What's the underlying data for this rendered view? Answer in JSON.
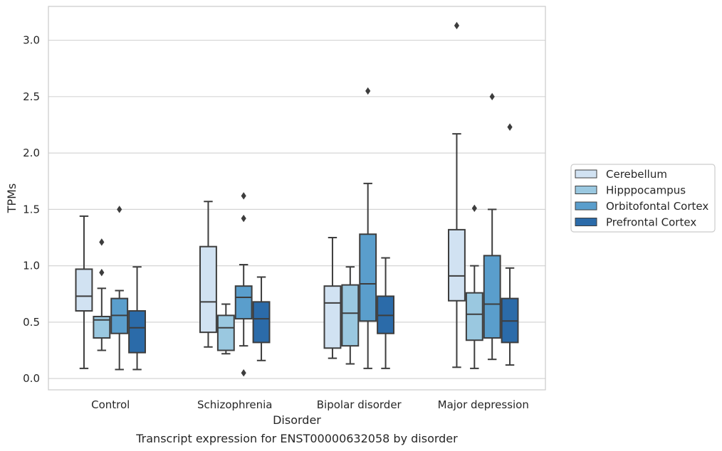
{
  "chart_data": {
    "type": "boxplot",
    "xlabel": "Disorder",
    "ylabel": "TPMs",
    "caption": "Transcript expression for ENST00000632058 by disorder",
    "ylim": [
      -0.1,
      3.3
    ],
    "yticks": [
      0.0,
      0.5,
      1.0,
      1.5,
      2.0,
      2.5,
      3.0
    ],
    "ytick_labels": [
      "0.0",
      "0.5",
      "1.0",
      "1.5",
      "2.0",
      "2.5",
      "3.0"
    ],
    "grid": "horizontal",
    "legend_position": "right",
    "categories": [
      "Control",
      "Schizophrenia",
      "Bipolar disorder",
      "Major depression"
    ],
    "series": [
      {
        "name": "Cerebellum",
        "color": "#d1e2f2",
        "boxes": [
          {
            "whislo": 0.09,
            "q1": 0.6,
            "med": 0.73,
            "q3": 0.97,
            "whishi": 1.44,
            "fliers": []
          },
          {
            "whislo": 0.28,
            "q1": 0.41,
            "med": 0.68,
            "q3": 1.17,
            "whishi": 1.57,
            "fliers": []
          },
          {
            "whislo": 0.18,
            "q1": 0.27,
            "med": 0.67,
            "q3": 0.82,
            "whishi": 1.25,
            "fliers": []
          },
          {
            "whislo": 0.1,
            "q1": 0.69,
            "med": 0.91,
            "q3": 1.32,
            "whishi": 2.17,
            "fliers": [
              3.13
            ]
          }
        ]
      },
      {
        "name": "Hipppocampus",
        "color": "#9ac8e0",
        "boxes": [
          {
            "whislo": 0.25,
            "q1": 0.36,
            "med": 0.52,
            "q3": 0.55,
            "whishi": 0.8,
            "fliers": [
              1.21,
              0.94
            ]
          },
          {
            "whislo": 0.22,
            "q1": 0.25,
            "med": 0.45,
            "q3": 0.56,
            "whishi": 0.66,
            "fliers": []
          },
          {
            "whislo": 0.13,
            "q1": 0.29,
            "med": 0.58,
            "q3": 0.83,
            "whishi": 0.99,
            "fliers": []
          },
          {
            "whislo": 0.09,
            "q1": 0.34,
            "med": 0.57,
            "q3": 0.76,
            "whishi": 1.0,
            "fliers": [
              1.51
            ]
          }
        ]
      },
      {
        "name": "Orbitofontal Cortex",
        "color": "#5a9ecc",
        "boxes": [
          {
            "whislo": 0.08,
            "q1": 0.4,
            "med": 0.56,
            "q3": 0.71,
            "whishi": 0.78,
            "fliers": [
              1.5
            ]
          },
          {
            "whislo": 0.29,
            "q1": 0.53,
            "med": 0.72,
            "q3": 0.82,
            "whishi": 1.01,
            "fliers": [
              1.62,
              1.42,
              0.05
            ]
          },
          {
            "whislo": 0.09,
            "q1": 0.51,
            "med": 0.84,
            "q3": 1.28,
            "whishi": 1.73,
            "fliers": [
              2.55
            ]
          },
          {
            "whislo": 0.17,
            "q1": 0.36,
            "med": 0.66,
            "q3": 1.09,
            "whishi": 1.5,
            "fliers": [
              2.5
            ]
          }
        ]
      },
      {
        "name": "Prefrontal Cortex",
        "color": "#2b6ba9",
        "boxes": [
          {
            "whislo": 0.08,
            "q1": 0.23,
            "med": 0.45,
            "q3": 0.6,
            "whishi": 0.99,
            "fliers": []
          },
          {
            "whislo": 0.16,
            "q1": 0.32,
            "med": 0.53,
            "q3": 0.68,
            "whishi": 0.9,
            "fliers": []
          },
          {
            "whislo": 0.09,
            "q1": 0.4,
            "med": 0.56,
            "q3": 0.73,
            "whishi": 1.07,
            "fliers": []
          },
          {
            "whislo": 0.12,
            "q1": 0.32,
            "med": 0.51,
            "q3": 0.71,
            "whishi": 0.98,
            "fliers": [
              2.23
            ]
          }
        ]
      }
    ]
  }
}
